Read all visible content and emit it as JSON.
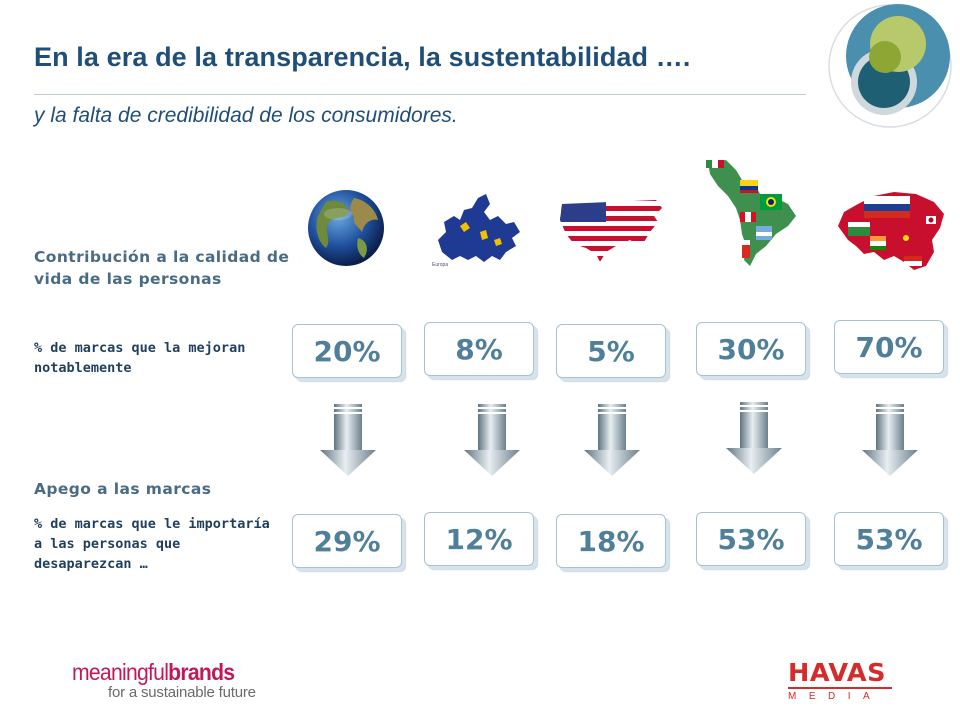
{
  "title": "En la era de la transparencia, la sustentabilidad ….",
  "subtitle": "y la falta de credibilidad de los consumidores.",
  "section1": {
    "label": "Contribución a la calidad de vida de las personas",
    "note": "% de marcas que la mejoran notablemente"
  },
  "section2": {
    "label": "Apego a las marcas",
    "note": "% de marcas que le importaría a las personas que desaparezcan …"
  },
  "regions": [
    {
      "icon": "world-globe-icon",
      "top_value": "20%",
      "bottom_value": "29%"
    },
    {
      "icon": "europe-map-icon",
      "top_value": "8%",
      "bottom_value": "12%"
    },
    {
      "icon": "usa-flag-map-icon",
      "top_value": "5%",
      "bottom_value": "18%"
    },
    {
      "icon": "latin-america-flags-map-icon",
      "top_value": "30%",
      "bottom_value": "53%"
    },
    {
      "icon": "asia-flags-map-icon",
      "top_value": "70%",
      "bottom_value": "53%"
    }
  ],
  "footer": {
    "left_logo": {
      "word1": "meaningful",
      "word2": "brands",
      "tagline": "for a sustainable future"
    },
    "right_logo": {
      "name": "HAVAS",
      "sub": "MEDIA"
    }
  },
  "colors": {
    "title": "#1f4e79",
    "percent": "#4f7f9a",
    "brand_pink": "#c2185b",
    "havas_red": "#d42b2b"
  }
}
